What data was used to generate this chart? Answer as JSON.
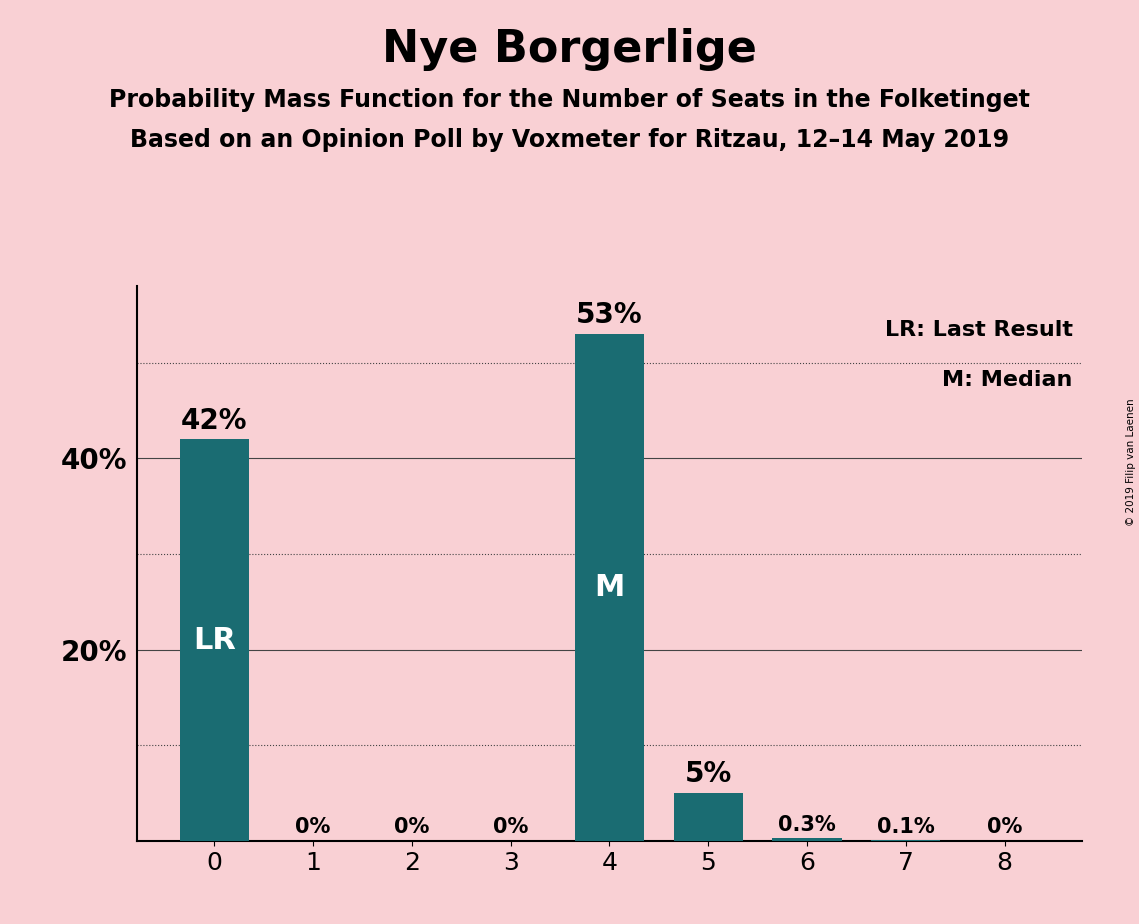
{
  "title": "Nye Borgerlige",
  "subtitle1": "Probability Mass Function for the Number of Seats in the Folketinget",
  "subtitle2": "Based on an Opinion Poll by Voxmeter for Ritzau, 12–14 May 2019",
  "copyright": "© 2019 Filip van Laenen",
  "categories": [
    0,
    1,
    2,
    3,
    4,
    5,
    6,
    7,
    8
  ],
  "values": [
    42,
    0,
    0,
    0,
    53,
    5,
    0.3,
    0.1,
    0
  ],
  "bar_labels": [
    "42%",
    "0%",
    "0%",
    "0%",
    "53%",
    "5%",
    "0.3%",
    "0.1%",
    "0%"
  ],
  "bar_color": "#1a6c72",
  "background_color": "#f9d0d4",
  "lr_bar": 0,
  "median_bar": 4,
  "lr_label": "LR",
  "median_label": "M",
  "legend_lr": "LR: Last Result",
  "legend_m": "M: Median",
  "yticks_labeled": [
    20,
    40
  ],
  "ytick_labels": [
    "20%",
    "40%"
  ],
  "yticks_dotted": [
    10,
    30,
    50
  ],
  "yticks_solid": [
    20,
    40
  ],
  "ylim": [
    0,
    58
  ],
  "grid_color": "#444444",
  "title_fontsize": 32,
  "subtitle_fontsize": 17,
  "label_fontsize_large": 20,
  "label_fontsize_small": 15,
  "inner_label_fontsize": 22,
  "ytick_fontsize": 20,
  "xtick_fontsize": 18
}
